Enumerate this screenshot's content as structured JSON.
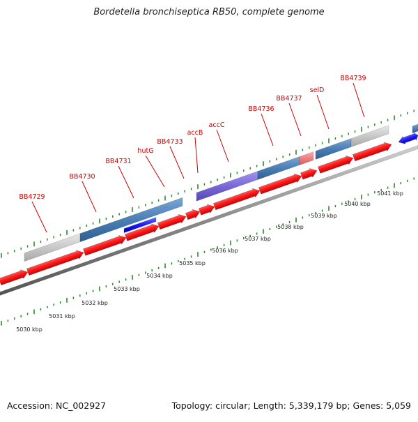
{
  "title": "Bordetella bronchiseptica RB50, complete genome",
  "accession": "Accession: NC_002927",
  "summary": "Topology: circular; Length: 5,339,179 bp; Genes: 5,059",
  "ruler": {
    "unit": "kbp",
    "labels": [
      "5030 kbp",
      "5031 kbp",
      "5032 kbp",
      "5033 kbp",
      "5034 kbp",
      "5035 kbp",
      "5036 kbp",
      "5037 kbp",
      "5038 kbp",
      "5039 kbp",
      "5040 kbp",
      "5041 kbp"
    ]
  },
  "gene_labels": [
    "BB4729",
    "BB4730",
    "BB4731",
    "hutG",
    "BB4733",
    "accB",
    "accC",
    "BB4736",
    "BB4737",
    "selD",
    "BB4739"
  ],
  "colors": {
    "cds_arrow": "#ff1a1a",
    "gene_bar": "#4a7fb5",
    "pseudo_bar": "#c8c8c8",
    "accc_bar": "#7b68d8",
    "misc_bar": "#f08080",
    "reverse_arrow": "#1a1aff",
    "tick": "#2a8a2a",
    "backbone": "#888888",
    "label": "#cc0000"
  }
}
